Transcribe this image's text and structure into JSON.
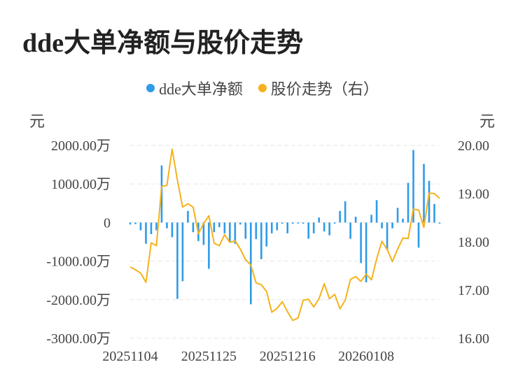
{
  "title": "dde大单净额与股价走势",
  "legend": [
    {
      "label": "dde大单净额",
      "color": "#2e9be8"
    },
    {
      "label": "股价走势（右）",
      "color": "#f5b21a"
    }
  ],
  "left_unit": "元",
  "right_unit": "元",
  "chart_data": {
    "type": "bar+line",
    "categories": [
      "20251104",
      "20251105",
      "20251106",
      "20251107",
      "20251110",
      "20251111",
      "20251112",
      "20251113",
      "20251114",
      "20251117",
      "20251118",
      "20251119",
      "20251120",
      "20251121",
      "20251124",
      "20251125",
      "20251126",
      "20251127",
      "20251128",
      "20251201",
      "20251202",
      "20251203",
      "20251204",
      "20251205",
      "20251208",
      "20251209",
      "20251210",
      "20251211",
      "20251212",
      "20251215",
      "20251216",
      "20251217",
      "20251218",
      "20251219",
      "20251222",
      "20251223",
      "20251224",
      "20251225",
      "20251226",
      "20251229",
      "20251230",
      "20251231",
      "20260105",
      "20260106",
      "20260107",
      "20260108",
      "20260109",
      "20260112",
      "20260113",
      "20260114",
      "20260115",
      "20260116",
      "20260119",
      "20260120",
      "20260121",
      "20260122",
      "20260123",
      "20260126",
      "20260127",
      "20260128"
    ],
    "x_tick_labels": [
      "20251104",
      "20251125",
      "20251216",
      "20260108"
    ],
    "series": [
      {
        "name": "dde大单净额",
        "type": "bar",
        "axis": "left",
        "color": "#2e9be8",
        "values": [
          -50,
          -40,
          -200,
          -550,
          -300,
          -200,
          1480,
          -150,
          -380,
          -1980,
          -1520,
          300,
          -250,
          -480,
          -580,
          -1200,
          -250,
          -120,
          -280,
          -500,
          -550,
          -50,
          -420,
          -2120,
          -430,
          -950,
          -620,
          -280,
          -200,
          -30,
          -280,
          -30,
          -20,
          -30,
          -420,
          -280,
          130,
          -230,
          -330,
          -20,
          300,
          550,
          -420,
          150,
          -1050,
          -1550,
          200,
          580,
          -150,
          -700,
          -150,
          380,
          100,
          1030,
          1880,
          -650,
          1520,
          1080,
          480,
          0
        ],
        "ylim": [
          -3000,
          2000
        ],
        "y_tick_labels": [
          "2000.00万",
          "1000.00万",
          "0",
          "-1000.00万",
          "-2000.00万",
          "-3000.00万"
        ]
      },
      {
        "name": "股价走势（右）",
        "type": "line",
        "axis": "right",
        "color": "#f5b21a",
        "values": [
          17.48,
          17.42,
          17.35,
          17.16,
          17.98,
          17.92,
          19.15,
          19.17,
          19.92,
          19.28,
          18.72,
          18.79,
          18.72,
          18.17,
          18.38,
          18.54,
          17.97,
          17.92,
          18.15,
          17.99,
          18.02,
          17.85,
          17.63,
          17.52,
          17.15,
          17.11,
          16.97,
          16.54,
          16.62,
          16.76,
          16.55,
          16.37,
          16.42,
          16.79,
          16.81,
          16.65,
          16.82,
          17.13,
          16.82,
          16.91,
          16.61,
          16.79,
          17.22,
          17.28,
          17.18,
          17.33,
          17.21,
          17.65,
          18.01,
          17.84,
          17.59,
          17.85,
          18.08,
          18.07,
          18.68,
          18.66,
          18.3,
          19.01,
          19.0,
          18.9
        ],
        "ylim": [
          16.0,
          20.0
        ],
        "y_tick_labels": [
          "20.00",
          "19.00",
          "18.00",
          "17.00",
          "16.00"
        ]
      }
    ],
    "grid": true
  }
}
